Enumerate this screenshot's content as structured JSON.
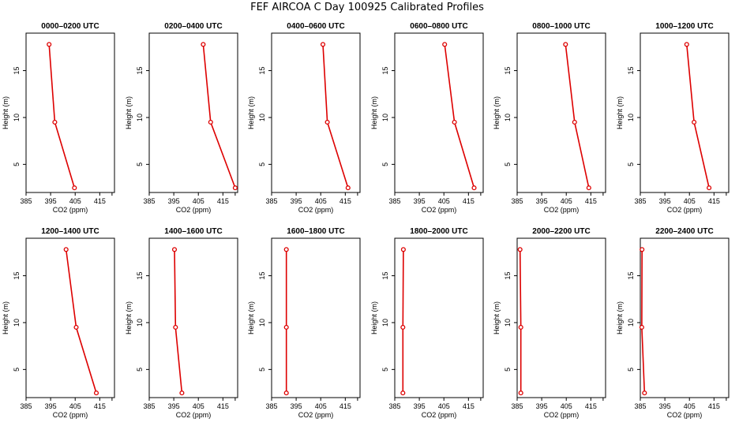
{
  "title": "FEF AIRCOA C  Day 100925  Calibrated Profiles",
  "colors": {
    "profile": "#dd0000",
    "axes": "#000000",
    "background": "#ffffff"
  },
  "chart_data": [
    {
      "type": "line",
      "title": "0000–0200 UTC",
      "xlabel": "CO2 (ppm)",
      "ylabel": "Height (m)",
      "xlim": [
        385,
        421
      ],
      "ylim": [
        2,
        19
      ],
      "xticks": [
        385,
        395,
        405,
        415
      ],
      "yticks": [
        5,
        10,
        15
      ],
      "x": [
        394.4,
        396.7,
        404.7
      ],
      "y": [
        17.8,
        9.5,
        2.5
      ]
    },
    {
      "type": "line",
      "title": "0200–0400 UTC",
      "xlabel": "CO2 (ppm)",
      "ylabel": "Height (m)",
      "xlim": [
        385,
        421
      ],
      "ylim": [
        2,
        19
      ],
      "xticks": [
        385,
        395,
        405,
        415
      ],
      "yticks": [
        5,
        10,
        15
      ],
      "x": [
        407.0,
        410.0,
        420.0
      ],
      "y": [
        17.8,
        9.5,
        2.5
      ]
    },
    {
      "type": "line",
      "title": "0400–0600 UTC",
      "xlabel": "CO2 (ppm)",
      "ylabel": "Height (m)",
      "xlim": [
        385,
        421
      ],
      "ylim": [
        2,
        19
      ],
      "xticks": [
        385,
        395,
        405,
        415
      ],
      "yticks": [
        5,
        10,
        15
      ],
      "x": [
        405.9,
        407.7,
        416.1
      ],
      "y": [
        17.8,
        9.5,
        2.5
      ]
    },
    {
      "type": "line",
      "title": "0600–0800 UTC",
      "xlabel": "CO2 (ppm)",
      "ylabel": "Height (m)",
      "xlim": [
        385,
        421
      ],
      "ylim": [
        2,
        19
      ],
      "xticks": [
        385,
        395,
        405,
        415
      ],
      "yticks": [
        5,
        10,
        15
      ],
      "x": [
        405.3,
        409.3,
        417.3
      ],
      "y": [
        17.8,
        9.5,
        2.5
      ]
    },
    {
      "type": "line",
      "title": "0800–1000 UTC",
      "xlabel": "CO2 (ppm)",
      "ylabel": "Height (m)",
      "xlim": [
        385,
        421
      ],
      "ylim": [
        2,
        19
      ],
      "xticks": [
        385,
        395,
        405,
        415
      ],
      "yticks": [
        5,
        10,
        15
      ],
      "x": [
        404.7,
        408.4,
        414.2
      ],
      "y": [
        17.8,
        9.5,
        2.5
      ]
    },
    {
      "type": "line",
      "title": "1000–1200 UTC",
      "xlabel": "CO2 (ppm)",
      "ylabel": "Height (m)",
      "xlim": [
        385,
        421
      ],
      "ylim": [
        2,
        19
      ],
      "xticks": [
        385,
        395,
        405,
        415
      ],
      "yticks": [
        5,
        10,
        15
      ],
      "x": [
        403.9,
        406.9,
        413.0
      ],
      "y": [
        17.8,
        9.5,
        2.5
      ]
    },
    {
      "type": "line",
      "title": "1200–1400 UTC",
      "xlabel": "CO2 (ppm)",
      "ylabel": "Height (m)",
      "xlim": [
        385,
        421
      ],
      "ylim": [
        2,
        19
      ],
      "xticks": [
        385,
        395,
        405,
        415
      ],
      "yticks": [
        5,
        10,
        15
      ],
      "x": [
        401.3,
        405.4,
        413.6
      ],
      "y": [
        17.8,
        9.5,
        2.5
      ]
    },
    {
      "type": "line",
      "title": "1400–1600 UTC",
      "xlabel": "CO2 (ppm)",
      "ylabel": "Height (m)",
      "xlim": [
        385,
        421
      ],
      "ylim": [
        2,
        19
      ],
      "xticks": [
        385,
        395,
        405,
        415
      ],
      "yticks": [
        5,
        10,
        15
      ],
      "x": [
        395.3,
        395.7,
        398.3
      ],
      "y": [
        17.8,
        9.5,
        2.5
      ]
    },
    {
      "type": "line",
      "title": "1600–1800 UTC",
      "xlabel": "CO2 (ppm)",
      "ylabel": "Height (m)",
      "xlim": [
        385,
        421
      ],
      "ylim": [
        2,
        19
      ],
      "xticks": [
        385,
        395,
        405,
        415
      ],
      "yticks": [
        5,
        10,
        15
      ],
      "x": [
        391.0,
        391.0,
        391.0
      ],
      "y": [
        17.8,
        9.5,
        2.5
      ]
    },
    {
      "type": "line",
      "title": "1800–2000 UTC",
      "xlabel": "CO2 (ppm)",
      "ylabel": "Height (m)",
      "xlim": [
        385,
        421
      ],
      "ylim": [
        2,
        19
      ],
      "xticks": [
        385,
        395,
        405,
        415
      ],
      "yticks": [
        5,
        10,
        15
      ],
      "x": [
        388.5,
        388.3,
        388.3
      ],
      "y": [
        17.8,
        9.5,
        2.5
      ]
    },
    {
      "type": "line",
      "title": "2000–2200 UTC",
      "xlabel": "CO2 (ppm)",
      "ylabel": "Height (m)",
      "xlim": [
        385,
        421
      ],
      "ylim": [
        2,
        19
      ],
      "xticks": [
        385,
        395,
        405,
        415
      ],
      "yticks": [
        5,
        10,
        15
      ],
      "x": [
        386.2,
        386.5,
        386.5
      ],
      "y": [
        17.8,
        9.5,
        2.5
      ]
    },
    {
      "type": "line",
      "title": "2200–2400 UTC",
      "xlabel": "CO2 (ppm)",
      "ylabel": "Height (m)",
      "xlim": [
        385,
        421
      ],
      "ylim": [
        2,
        19
      ],
      "xticks": [
        385,
        395,
        405,
        415
      ],
      "yticks": [
        5,
        10,
        15
      ],
      "x": [
        385.7,
        385.6,
        386.7
      ],
      "y": [
        17.8,
        9.5,
        2.5
      ]
    }
  ]
}
